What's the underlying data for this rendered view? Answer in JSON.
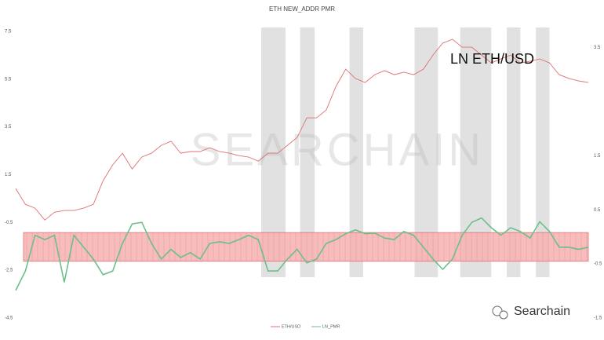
{
  "chart_data": {
    "type": "line",
    "title": "ETH NEW_ADDR PMR",
    "annotation": "LN ETH/USD",
    "watermark": "SEARCHAIN",
    "brand": "Searchain",
    "categories": [
      null,
      null,
      null,
      null,
      null,
      null,
      null,
      null,
      null,
      null,
      null,
      null,
      null,
      null,
      null,
      null,
      null,
      null,
      null,
      null,
      null,
      null,
      null,
      null,
      null,
      null,
      null,
      null,
      null,
      null,
      null,
      null,
      null,
      null,
      null,
      null,
      null,
      null,
      null,
      null,
      null,
      null,
      null,
      null,
      null,
      null,
      null,
      null,
      null,
      null,
      null,
      null,
      null,
      null,
      null,
      null,
      null,
      null,
      null,
      null
    ],
    "ylim": [
      -4.5,
      7.5
    ],
    "yticks": [
      7.5,
      5.5,
      3.5,
      1.5,
      -0.5,
      -2.5,
      -4.5
    ],
    "y2lim": [
      -1.5,
      3.8
    ],
    "y2ticks": [
      3.5,
      1.5,
      0.5,
      -0.5,
      -1.5
    ],
    "series": [
      {
        "name": "ETH/USD",
        "color": "#e07070",
        "values": [
          0.92,
          0.26,
          0.1,
          -0.4,
          -0.07,
          0,
          0,
          0.1,
          0.26,
          1.25,
          1.91,
          2.4,
          1.74,
          2.24,
          2.4,
          2.73,
          2.9,
          2.4,
          2.47,
          2.47,
          2.63,
          2.47,
          2.4,
          2.3,
          2.24,
          2.07,
          2.4,
          2.4,
          2.73,
          3.06,
          3.88,
          3.88,
          4.21,
          5.2,
          5.92,
          5.53,
          5.36,
          5.69,
          5.86,
          5.69,
          5.79,
          5.69,
          5.92,
          6.51,
          7.01,
          7.17,
          6.84,
          6.84,
          6.51,
          6.18,
          6.35,
          6.51,
          6.18,
          6.25,
          6.35,
          6.18,
          5.69,
          5.53,
          5.43,
          5.36
        ]
      },
      {
        "name": "LN_PMR",
        "color": "#6cbf8a",
        "axis": "y2",
        "values": [
          -0.99,
          -0.63,
          0.03,
          -0.05,
          0.03,
          -0.84,
          0.03,
          -0.19,
          -0.41,
          -0.7,
          -0.63,
          -0.12,
          0.24,
          0.27,
          -0.12,
          -0.41,
          -0.23,
          -0.38,
          -0.29,
          -0.41,
          -0.12,
          -0.09,
          -0.12,
          -0.05,
          0.03,
          -0.05,
          -0.63,
          -0.63,
          -0.41,
          -0.23,
          -0.48,
          -0.41,
          -0.12,
          -0.05,
          0.06,
          0.13,
          0.06,
          0.07,
          -0.02,
          -0.05,
          0.1,
          0.03,
          -0.19,
          -0.41,
          -0.6,
          -0.41,
          0.03,
          0.27,
          0.35,
          0.17,
          0.03,
          0.17,
          0.1,
          -0.02,
          0.28,
          0.1,
          -0.19,
          -0.19,
          -0.23,
          -0.19
        ]
      }
    ],
    "band": {
      "axis": "y2",
      "from": -0.45,
      "to": 0.08,
      "color": "#f7b5b5"
    },
    "shaded_ranges": [
      [
        25.3,
        27.8
      ],
      [
        29.3,
        30.8
      ],
      [
        34.4,
        35.8
      ],
      [
        41.1,
        43.5
      ],
      [
        45.8,
        49.0
      ],
      [
        50.6,
        52.0
      ],
      [
        53.6,
        55.0
      ]
    ],
    "shade_color": "#dcdcdc"
  }
}
